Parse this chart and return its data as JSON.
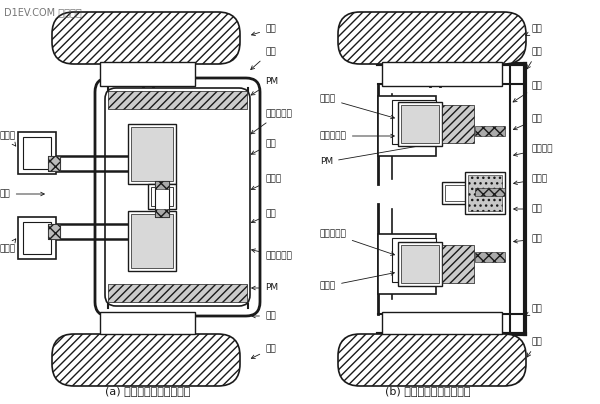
{
  "bg_color": "#ffffff",
  "line_color": "#1a1a1a",
  "watermark": "D1EV.COM 第一电动",
  "title_a": "(a) 直接驱动的外转子电机",
  "title_b": "(b) 减速驱动的内转子电机",
  "labels_a_right": [
    "轮胎",
    "轮辐",
    "PM",
    "电动机绕组",
    "车轮",
    "编码器",
    "车轮",
    "电动机绕组",
    "PM",
    "轮辐",
    "轮胎"
  ],
  "labels_a_left": [
    "制动鼓",
    "轴承",
    "制动鼓"
  ],
  "labels_b_right": [
    "轮胎",
    "轮辐",
    "车轮",
    "轴承",
    "行星齿轮",
    "编码器",
    "轴承",
    "车轮",
    "轮辐",
    "轮胎"
  ],
  "labels_b_left": [
    "制动鼓",
    "电动机绕组",
    "PM",
    "电动机绕组",
    "制动鼓"
  ]
}
